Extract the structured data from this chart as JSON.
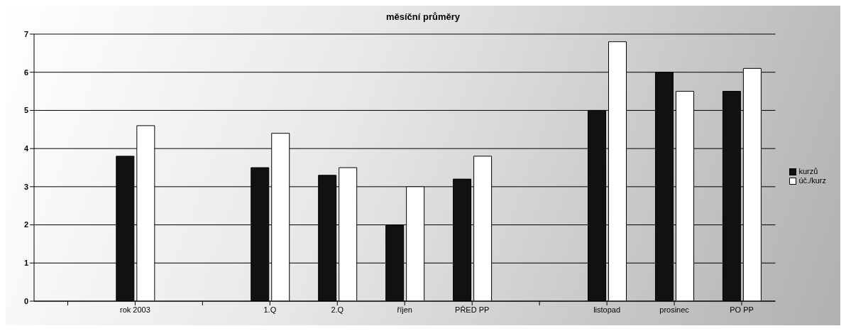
{
  "chart_data": {
    "type": "bar",
    "title": "měsíční průměry",
    "categories": [
      null,
      "rok 2003",
      null,
      "1.Q",
      "2.Q",
      "říjen",
      "PŘED PP",
      null,
      "listopad",
      "prosinec",
      "PO PP"
    ],
    "series": [
      {
        "name": "kurzů",
        "color": "#111111",
        "values": [
          null,
          3.8,
          null,
          3.5,
          3.3,
          2.0,
          3.2,
          null,
          5.0,
          6.0,
          5.5
        ]
      },
      {
        "name": "úč./kurz",
        "color": "#ffffff",
        "values": [
          null,
          4.6,
          null,
          4.4,
          3.5,
          3.0,
          3.8,
          null,
          6.8,
          5.5,
          6.1
        ]
      }
    ],
    "ylim": [
      0,
      7
    ],
    "yticks": [
      0,
      1,
      2,
      3,
      4,
      5,
      6,
      7
    ],
    "grid": "y",
    "legend": "right"
  }
}
